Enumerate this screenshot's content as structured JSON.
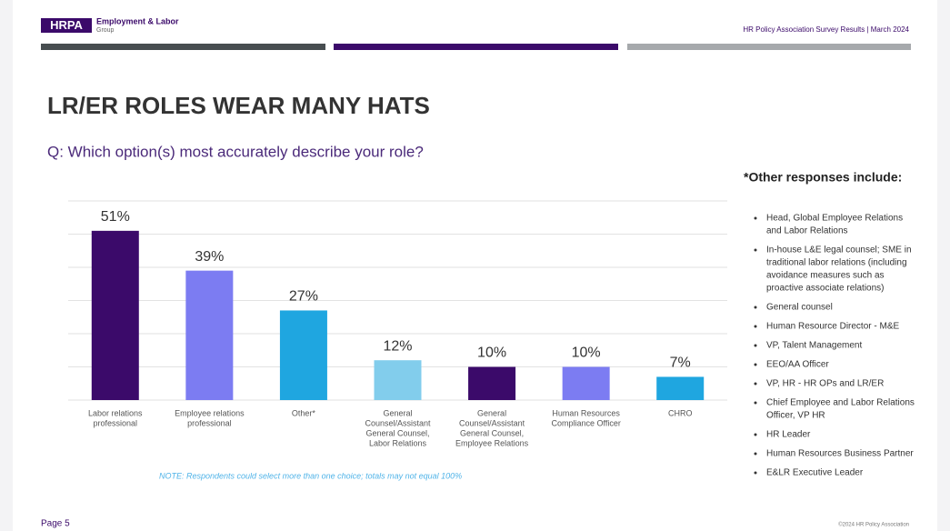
{
  "header": {
    "logo": "HRPA",
    "org_line1": "Employment & Labor",
    "org_line2": "Group",
    "survey": "HR Policy Association Survey Results  | March 2024"
  },
  "title": "LR/ER ROLES WEAR MANY HATS",
  "question": "Q: Which option(s) most accurately describe your role?",
  "chart_data": {
    "type": "bar",
    "categories": [
      [
        "Labor relations",
        "professional"
      ],
      [
        "Employee relations",
        "professional"
      ],
      [
        "Other*"
      ],
      [
        "General",
        "Counsel/Assistant",
        "General Counsel,",
        "Labor Relations"
      ],
      [
        "General",
        "Counsel/Assistant",
        "General Counsel,",
        "Employee Relations"
      ],
      [
        "Human Resources",
        "Compliance Officer"
      ],
      [
        "CHRO"
      ]
    ],
    "values": [
      51,
      39,
      27,
      12,
      10,
      10,
      7
    ],
    "value_labels": [
      "51%",
      "39%",
      "27%",
      "12%",
      "10%",
      "10%",
      "7%"
    ],
    "colors": [
      "#3b0a6a",
      "#7c7cf2",
      "#1fa6e0",
      "#82cdec",
      "#3b0a6a",
      "#7c7cf2",
      "#1fa6e0"
    ],
    "ylim": [
      0,
      60
    ],
    "yticks": [
      0,
      10,
      20,
      30,
      40,
      50,
      60
    ],
    "grid": true
  },
  "note": "NOTE: Respondents could select more than one choice; totals may not equal 100%",
  "other": {
    "heading": "*Other responses include:",
    "items": [
      [
        "Head, Global Employee Relations",
        "and Labor Relations"
      ],
      [
        "In-house L&E legal counsel; SME in",
        "traditional labor relations (including",
        "avoidance measures such as",
        "proactive associate relations)"
      ],
      [
        "General counsel"
      ],
      [
        "Human Resource Director - M&E"
      ],
      [
        "VP, Talent Management"
      ],
      [
        "EEO/AA Officer"
      ],
      [
        "VP, HR - HR OPs and LR/ER"
      ],
      [
        "Chief Employee and Labor Relations",
        "Officer, VP HR"
      ],
      [
        "HR Leader"
      ],
      [
        "Human Resources Business Partner"
      ],
      [
        "E&LR Executive Leader"
      ]
    ]
  },
  "footer": {
    "page": "Page 5",
    "copyright": "©2024 HR Policy Association"
  }
}
